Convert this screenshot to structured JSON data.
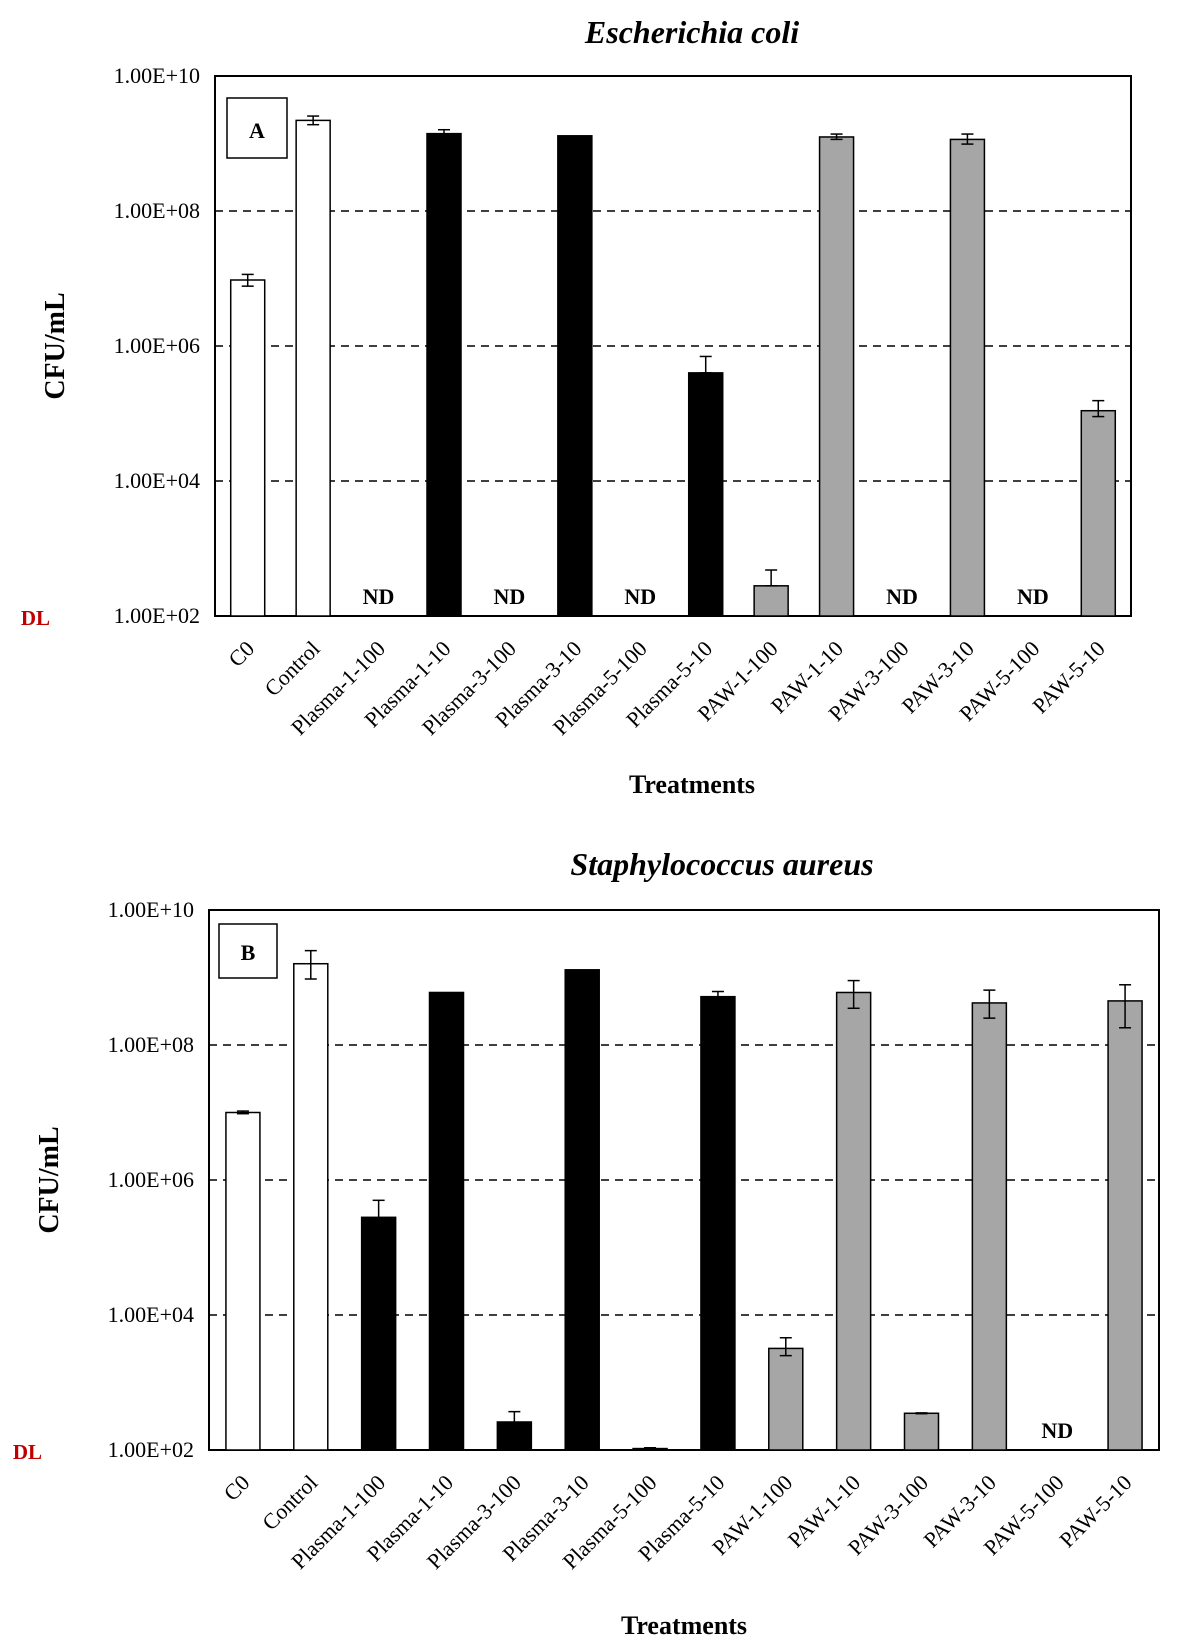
{
  "figure": {
    "caption": ""
  },
  "chart_data": [
    {
      "type": "bar",
      "panel_label": "A",
      "title": "Escherichia coli",
      "xlabel": "Treatments",
      "ylabel": "CFU/mL",
      "yscale": "log",
      "ylim": [
        100,
        10000000000
      ],
      "ytick_labels": [
        "1.00E+02",
        "1.00E+04",
        "1.00E+06",
        "1.00E+08",
        "1.00E+10"
      ],
      "detection_limit_label": "DL",
      "grid": "dashed horizontal",
      "categories": [
        "C0",
        "Control",
        "Plasma-1-100",
        "Plasma-1-10",
        "Plasma-3-100",
        "Plasma-3-10",
        "Plasma-5-100",
        "Plasma-5-10",
        "PAW-1-100",
        "PAW-1-10",
        "PAW-3-100",
        "PAW-3-10",
        "PAW-5-100",
        "PAW-5-10"
      ],
      "values": [
        9500000,
        2200000000,
        null,
        1400000000,
        null,
        1300000000,
        null,
        400000,
        280,
        1250000000,
        null,
        1150000000,
        null,
        110000
      ],
      "err_low": [
        7700000,
        1900000000,
        null,
        1250000000,
        null,
        1300000000,
        null,
        400000,
        280,
        1150000000,
        null,
        980000000,
        null,
        90000
      ],
      "err_high": [
        11500000,
        2550000000,
        null,
        1600000000,
        null,
        1300000000,
        null,
        700000,
        480,
        1380000000,
        null,
        1380000000,
        null,
        155000
      ],
      "fills": [
        "#ffffff",
        "#ffffff",
        "#000000",
        "#000000",
        "#000000",
        "#000000",
        "#000000",
        "#000000",
        "#a6a6a6",
        "#a6a6a6",
        "#a6a6a6",
        "#a6a6a6",
        "#a6a6a6",
        "#a6a6a6"
      ],
      "nd_label": "ND",
      "nd_indices": [
        2,
        4,
        6,
        10,
        12
      ]
    },
    {
      "type": "bar",
      "panel_label": "B",
      "title": "Staphylococcus aureus",
      "xlabel": "Treatments",
      "ylabel": "CFU/mL",
      "yscale": "log",
      "ylim": [
        100,
        10000000000
      ],
      "ytick_labels": [
        "1.00E+02",
        "1.00E+04",
        "1.00E+06",
        "1.00E+08",
        "1.00E+10"
      ],
      "detection_limit_label": "DL",
      "grid": "dashed horizontal",
      "categories": [
        "C0",
        "Control",
        "Plasma-1-100",
        "Plasma-1-10",
        "Plasma-3-100",
        "Plasma-3-10",
        "Plasma-5-100",
        "Plasma-5-10",
        "PAW-1-100",
        "PAW-1-10",
        "PAW-3-100",
        "PAW-3-10",
        "PAW-5-100",
        "PAW-5-10"
      ],
      "values": [
        10000000,
        1600000000,
        280000,
        600000000,
        260,
        1300000000,
        105,
        520000000,
        3200,
        600000000,
        350,
        420000000,
        null,
        450000000
      ],
      "err_low": [
        9600000,
        950000000,
        160000,
        600000000,
        170,
        1300000000,
        102,
        480000000,
        2500,
        350000000,
        345,
        250000000,
        null,
        180000000
      ],
      "err_high": [
        10500000,
        2500000000,
        500000,
        600000000,
        370,
        1300000000,
        108,
        620000000,
        4600,
        900000000,
        355,
        650000000,
        null,
        780000000
      ],
      "fills": [
        "#ffffff",
        "#ffffff",
        "#000000",
        "#000000",
        "#000000",
        "#000000",
        "#000000",
        "#000000",
        "#a6a6a6",
        "#a6a6a6",
        "#a6a6a6",
        "#a6a6a6",
        "#a6a6a6",
        "#a6a6a6"
      ],
      "nd_label": "ND",
      "nd_indices": [
        12
      ]
    }
  ],
  "colors": {
    "dl": "#c00000",
    "grid": "#000000",
    "axis": "#000000"
  }
}
